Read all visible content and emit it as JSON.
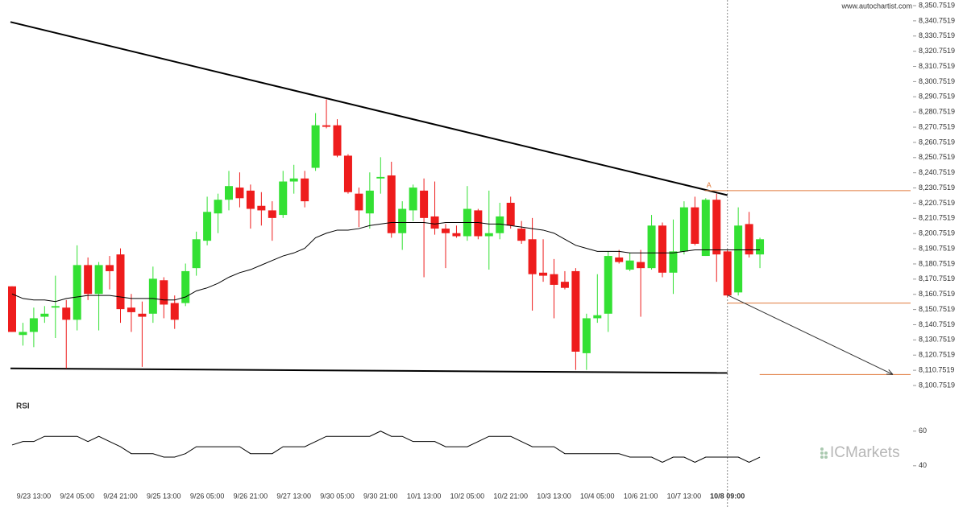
{
  "header": {
    "source": "www.autochartist.com",
    "watermark": "ICMarkets"
  },
  "chart_data": [
    {
      "type": "candlestick",
      "categories": [
        null,
        null,
        "9/23 13:00",
        null,
        null,
        null,
        "9/24 05:00",
        null,
        null,
        null,
        "9/24 21:00",
        null,
        null,
        null,
        "9/25 13:00",
        null,
        null,
        null,
        "9/26 05:00",
        null,
        null,
        null,
        "9/26 21:00",
        null,
        null,
        null,
        "9/27 13:00",
        null,
        null,
        null,
        "9/30 05:00",
        null,
        null,
        null,
        "9/30 21:00",
        null,
        null,
        null,
        "10/1 13:00",
        null,
        null,
        null,
        "10/2 05:00",
        null,
        null,
        null,
        "10/2 21:00",
        null,
        null,
        null,
        "10/3 13:00",
        null,
        null,
        null,
        "10/4 05:00",
        null,
        null,
        null,
        "10/6 21:00",
        null,
        null,
        null,
        "10/7 13:00",
        null,
        null,
        null,
        "10/8 09:00",
        null,
        null,
        null
      ],
      "open": [
        8166,
        8134,
        8136,
        8146,
        8152,
        8152,
        8144,
        8180,
        8161,
        8180,
        8187,
        8152,
        8148,
        8148,
        8170,
        8155,
        8155,
        8178,
        8196,
        8214,
        8223,
        8231,
        8229,
        8219,
        8216,
        8213,
        8235,
        8237,
        8244,
        8272,
        8272,
        8252,
        8227,
        8214,
        8237,
        8239,
        8201,
        8216,
        8229,
        8212,
        8204,
        8201,
        8199,
        8216,
        8199,
        8201,
        8221,
        8204,
        8197,
        8175,
        8174,
        8169,
        8176,
        8122,
        8145,
        8148,
        8185,
        8177,
        8182,
        8178,
        8206,
        8175,
        8189,
        8218,
        8186,
        8223,
        8189,
        8162,
        8207,
        8187
      ],
      "high": [
        8166,
        8142,
        8152,
        8153,
        8173,
        8157,
        8193,
        8185,
        8182,
        8186,
        8191,
        8161,
        8156,
        8179,
        8172,
        8160,
        8181,
        8202,
        8225,
        8227,
        8242,
        8241,
        8233,
        8228,
        8222,
        8242,
        8246,
        8242,
        8280,
        8289,
        8276,
        8253,
        8231,
        8241,
        8251,
        8248,
        8222,
        8233,
        8237,
        8235,
        8207,
        8206,
        8232,
        8217,
        8229,
        8221,
        8225,
        8209,
        8211,
        8197,
        8184,
        8176,
        8178,
        8148,
        8174,
        8189,
        8190,
        8188,
        8190,
        8213,
        8208,
        8210,
        8222,
        8225,
        8224,
        8227,
        8190,
        8218,
        8215,
        8198
      ],
      "low": [
        8136,
        8127,
        8126,
        8142,
        8132,
        8112,
        8137,
        8157,
        8137,
        8164,
        8142,
        8136,
        8113,
        8142,
        8145,
        8138,
        8153,
        8173,
        8193,
        8201,
        8216,
        8218,
        8204,
        8206,
        8196,
        8211,
        8227,
        8218,
        8242,
        8270,
        8251,
        8227,
        8205,
        8204,
        8227,
        8198,
        8190,
        8209,
        8172,
        8200,
        8178,
        8198,
        8196,
        8197,
        8177,
        8197,
        8204,
        8194,
        8150,
        8169,
        8145,
        8164,
        8111,
        8111,
        8142,
        8136,
        8181,
        8176,
        8146,
        8177,
        8172,
        8161,
        8187,
        8193,
        8186,
        8169,
        8159,
        8160,
        8185,
        8178
      ],
      "close": [
        8136,
        8136,
        8145,
        8148,
        8153,
        8144,
        8180,
        8161,
        8180,
        8176,
        8151,
        8149,
        8146,
        8171,
        8154,
        8144,
        8176,
        8197,
        8215,
        8223,
        8232,
        8224,
        8217,
        8216,
        8211,
        8235,
        8237,
        8222,
        8272,
        8271,
        8252,
        8228,
        8216,
        8229,
        8238,
        8201,
        8217,
        8231,
        8211,
        8204,
        8201,
        8199,
        8217,
        8199,
        8201,
        8212,
        8206,
        8196,
        8174,
        8173,
        8167,
        8165,
        8123,
        8145,
        8147,
        8186,
        8182,
        8183,
        8178,
        8206,
        8175,
        8189,
        8218,
        8194,
        8223,
        8187,
        8160,
        8206,
        8187,
        8197
      ],
      "moving_average": [
        8161,
        8158,
        8157,
        8157,
        8156,
        8158,
        8159,
        8160,
        8160,
        8160,
        8159,
        8158,
        8158,
        8158,
        8157,
        8157,
        8159,
        8163,
        8165,
        8168,
        8172,
        8175,
        8177,
        8180,
        8183,
        8186,
        8188,
        8191,
        8198,
        8201,
        8203,
        8203,
        8204,
        8206,
        8207,
        8208,
        8208,
        8208,
        8208,
        8207,
        8208,
        8208,
        8208,
        8208,
        8207,
        8207,
        8206,
        8205,
        8204,
        8203,
        8201,
        8197,
        8193,
        8191,
        8189,
        8189,
        8189,
        8188,
        8188,
        8188,
        8188,
        8188,
        8189,
        8190,
        8190,
        8190,
        8190,
        8190,
        8190,
        8190
      ],
      "up_color": "#33e033",
      "down_color": "#ee1c1c",
      "pattern_lines": [
        {
          "x": [
            0,
            66
          ],
          "values": [
            8340,
            8226
          ]
        },
        {
          "x": [
            0,
            66
          ],
          "values": [
            8112,
            8109
          ]
        }
      ],
      "forecast_levels": [
        8229,
        8155,
        8108
      ],
      "forecast_label": "A",
      "forecast_color": "#e07a3c",
      "ylim": [
        8100.7519,
        8350.7519
      ],
      "yticks": [
        {
          "value": 8100.7519,
          "label": "8,100.7519"
        },
        {
          "value": 8110.7519,
          "label": "8,110.7519"
        },
        {
          "value": 8120.7519,
          "label": "8,120.7519"
        },
        {
          "value": 8130.7519,
          "label": "8,130.7519"
        },
        {
          "value": 8140.7519,
          "label": "8,140.7519"
        },
        {
          "value": 8150.7519,
          "label": "8,150.7519"
        },
        {
          "value": 8160.7519,
          "label": "8,160.7519"
        },
        {
          "value": 8170.7519,
          "label": "8,170.7519"
        },
        {
          "value": 8180.7519,
          "label": "8,180.7519"
        },
        {
          "value": 8190.7519,
          "label": "8,190.7519"
        },
        {
          "value": 8200.7519,
          "label": "8,200.7519"
        },
        {
          "value": 8210.7519,
          "label": "8,210.7519"
        },
        {
          "value": 8220.7519,
          "label": "8,220.7519"
        },
        {
          "value": 8230.7519,
          "label": "8,230.7519"
        },
        {
          "value": 8240.7519,
          "label": "8,240.7519"
        },
        {
          "value": 8250.7519,
          "label": "8,250.7519"
        },
        {
          "value": 8260.7519,
          "label": "8,260.7519"
        },
        {
          "value": 8270.7519,
          "label": "8,270.7519"
        },
        {
          "value": 8280.7519,
          "label": "8,280.7519"
        },
        {
          "value": 8290.7519,
          "label": "8,290.7519"
        },
        {
          "value": 8300.7519,
          "label": "8,300.7519"
        },
        {
          "value": 8310.7519,
          "label": "8,310.7519"
        },
        {
          "value": 8320.7519,
          "label": "8,320.7519"
        },
        {
          "value": 8330.7519,
          "label": "8,330.7519"
        },
        {
          "value": 8340.7519,
          "label": "8,340.7519"
        },
        {
          "value": 8350.7519,
          "label": "8,350.7519"
        }
      ]
    },
    {
      "type": "line",
      "title": "RSI",
      "values": [
        52,
        54,
        54,
        57,
        57,
        57,
        57,
        54,
        57,
        54,
        51,
        47,
        47,
        47,
        45,
        45,
        47,
        51,
        51,
        51,
        51,
        51,
        47,
        47,
        47,
        51,
        51,
        51,
        54,
        57,
        57,
        57,
        57,
        57,
        60,
        57,
        57,
        54,
        54,
        54,
        51,
        51,
        51,
        54,
        57,
        57,
        57,
        54,
        51,
        51,
        51,
        47,
        47,
        47,
        47,
        47,
        47,
        45,
        45,
        45,
        42,
        45,
        45,
        42,
        45,
        45,
        45,
        45,
        42,
        45
      ],
      "color": "#000000",
      "ylim": [
        32,
        78
      ],
      "yticks": [
        40,
        60
      ]
    }
  ]
}
